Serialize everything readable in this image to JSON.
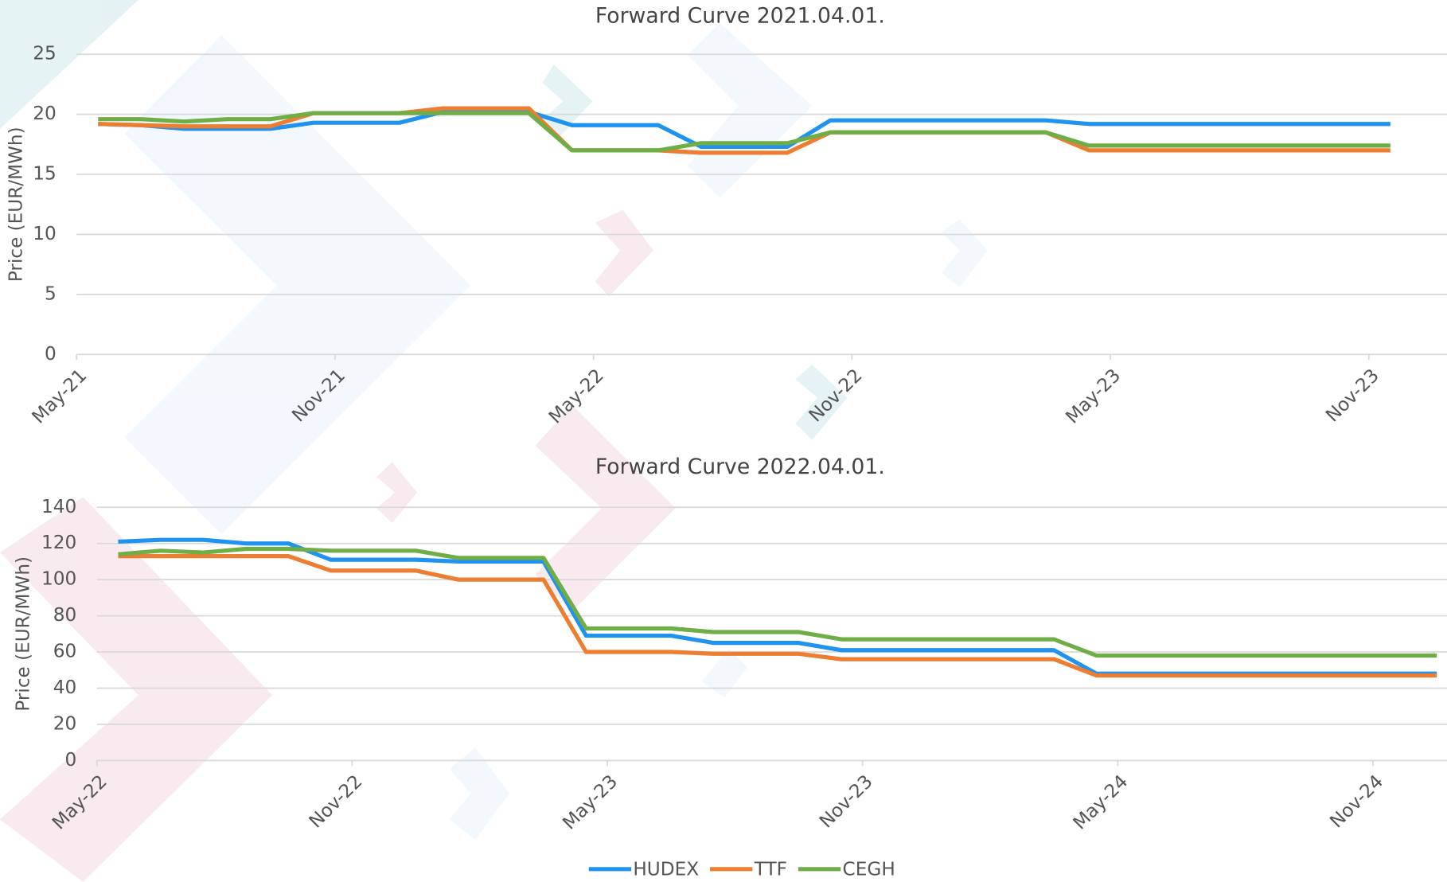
{
  "chart_data": [
    {
      "type": "line",
      "title": "Forward Curve 2021.04.01.",
      "y_label": "Price (EUR/MWh)",
      "categories": [
        "May-21",
        null,
        null,
        null,
        null,
        null,
        "Nov-21",
        null,
        null,
        null,
        null,
        null,
        "May-22",
        null,
        null,
        null,
        null,
        null,
        "Nov-22",
        null,
        null,
        null,
        null,
        null,
        "May-23",
        null,
        null,
        null,
        null,
        null,
        "Nov-23"
      ],
      "ylim": [
        0,
        25
      ],
      "yticks": [
        0,
        5,
        10,
        15,
        20,
        25
      ],
      "grid": true,
      "series": [
        {
          "name": "HUDEX",
          "color": "#1f93ef",
          "values": [
            19.2,
            19.1,
            18.8,
            18.8,
            18.8,
            19.3,
            19.3,
            19.3,
            20.2,
            20.2,
            20.2,
            19.1,
            19.1,
            19.1,
            17.3,
            17.3,
            17.3,
            19.5,
            19.5,
            19.5,
            19.5,
            19.5,
            19.5,
            19.2,
            19.2,
            19.2,
            19.2,
            19.2,
            19.2,
            19.2,
            19.2
          ]
        },
        {
          "name": "TTF",
          "color": "#ed7d31",
          "values": [
            19.2,
            19.1,
            19.0,
            19.0,
            19.0,
            20.1,
            20.1,
            20.1,
            20.5,
            20.5,
            20.5,
            17.0,
            17.0,
            17.0,
            16.8,
            16.8,
            16.8,
            18.5,
            18.5,
            18.5,
            18.5,
            18.5,
            18.5,
            17.0,
            17.0,
            17.0,
            17.0,
            17.0,
            17.0,
            17.0,
            17.0
          ]
        },
        {
          "name": "CEGH",
          "color": "#6fad47",
          "values": [
            19.6,
            19.6,
            19.4,
            19.6,
            19.6,
            20.1,
            20.1,
            20.1,
            20.1,
            20.1,
            20.1,
            17.0,
            17.0,
            17.0,
            17.6,
            17.6,
            17.6,
            18.5,
            18.5,
            18.5,
            18.5,
            18.5,
            18.5,
            17.4,
            17.4,
            17.4,
            17.4,
            17.4,
            17.4,
            17.4,
            17.4
          ]
        }
      ]
    },
    {
      "type": "line",
      "title": "Forward Curve 2022.04.01.",
      "y_label": "Price (EUR/MWh)",
      "categories": [
        "May-22",
        null,
        null,
        null,
        null,
        null,
        "Nov-22",
        null,
        null,
        null,
        null,
        null,
        "May-23",
        null,
        null,
        null,
        null,
        null,
        "Nov-23",
        null,
        null,
        null,
        null,
        null,
        "May-24",
        null,
        null,
        null,
        null,
        null,
        "Nov-24",
        null
      ],
      "ylim": [
        0,
        140
      ],
      "yticks": [
        0,
        20,
        40,
        60,
        80,
        100,
        120,
        140
      ],
      "grid": true,
      "series": [
        {
          "name": "HUDEX",
          "color": "#1f93ef",
          "values": [
            121,
            122,
            122,
            120,
            120,
            111,
            111,
            111,
            110,
            110,
            110,
            69,
            69,
            69,
            65,
            65,
            65,
            61,
            61,
            61,
            61,
            61,
            61,
            48,
            48,
            48,
            48,
            48,
            48,
            48,
            48,
            48
          ]
        },
        {
          "name": "TTF",
          "color": "#ed7d31",
          "values": [
            113,
            113,
            113,
            113,
            113,
            105,
            105,
            105,
            100,
            100,
            100,
            60,
            60,
            60,
            59,
            59,
            59,
            56,
            56,
            56,
            56,
            56,
            56,
            47,
            47,
            47,
            47,
            47,
            47,
            47,
            47,
            47
          ]
        },
        {
          "name": "CEGH",
          "color": "#6fad47",
          "values": [
            114,
            116,
            115,
            117,
            117,
            116,
            116,
            116,
            112,
            112,
            112,
            73,
            73,
            73,
            71,
            71,
            71,
            67,
            67,
            67,
            67,
            67,
            67,
            58,
            58,
            58,
            58,
            58,
            58,
            58,
            58,
            58
          ]
        }
      ]
    }
  ]
}
